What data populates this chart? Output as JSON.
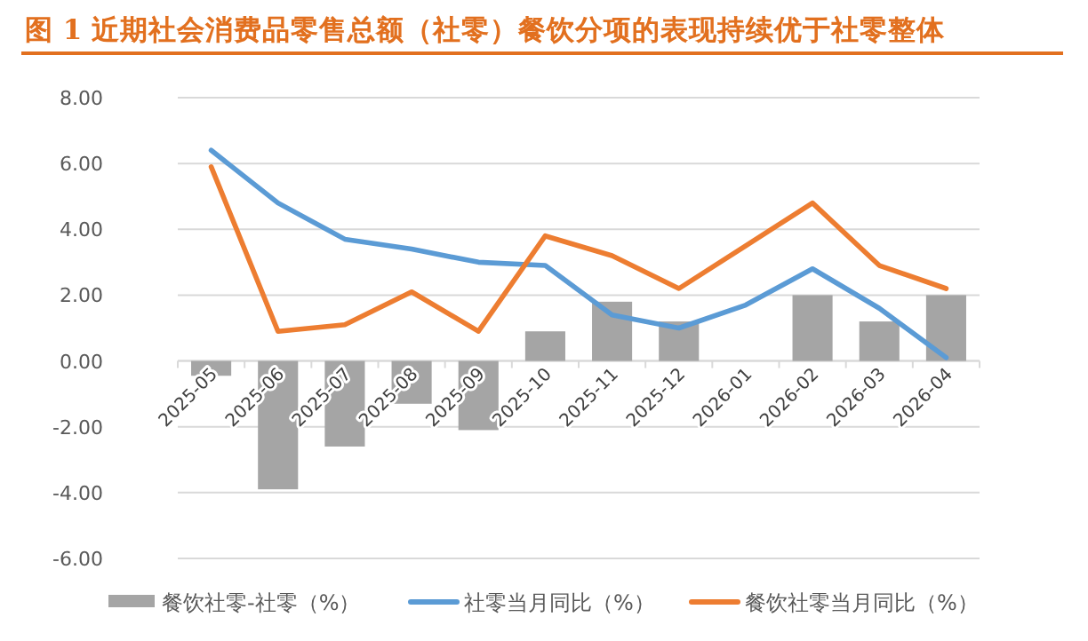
{
  "chart_data": {
    "type": "bar",
    "title": "图 1  近期社会消费品零售总额（社零）餐饮分项的表现持续优于社零整体",
    "categories": [
      "2025-05",
      "2025-06",
      "2025-07",
      "2025-08",
      "2025-09",
      "2025-10",
      "2025-11",
      "2025-12",
      "2026-01",
      "2026-02",
      "2026-03",
      "2026-04"
    ],
    "series": [
      {
        "name": "餐饮社零-社零（%）",
        "color": "#a5a5a5",
        "values": [
          -0.45,
          -3.9,
          -2.6,
          -1.3,
          -2.1,
          0.9,
          1.8,
          1.2,
          null,
          2.0,
          1.2,
          2.0
        ]
      },
      {
        "name": "社零当月同比（%）",
        "type": "line",
        "color": "#5b9bd5",
        "values": [
          6.4,
          4.8,
          3.7,
          3.4,
          3.0,
          2.9,
          1.4,
          1.0,
          1.7,
          2.8,
          1.6,
          0.1
        ]
      },
      {
        "name": "餐饮社零当月同比（%）",
        "type": "line",
        "color": "#ed7d31",
        "values": [
          5.9,
          0.9,
          1.1,
          2.1,
          0.9,
          3.8,
          3.2,
          2.2,
          3.5,
          4.8,
          2.9,
          2.2
        ]
      }
    ],
    "ylim": [
      -6,
      8
    ],
    "yticks": [
      {
        "value": -6,
        "label": "-6.00"
      },
      {
        "value": -4,
        "label": "-4.00"
      },
      {
        "value": -2,
        "label": "-2.00"
      },
      {
        "value": 0,
        "label": "0.00"
      },
      {
        "value": 2,
        "label": "2.00"
      },
      {
        "value": 4,
        "label": "4.00"
      },
      {
        "value": 6,
        "label": "6.00"
      },
      {
        "value": 8,
        "label": "8.00"
      }
    ],
    "grid": "y",
    "legend": "bottom"
  }
}
